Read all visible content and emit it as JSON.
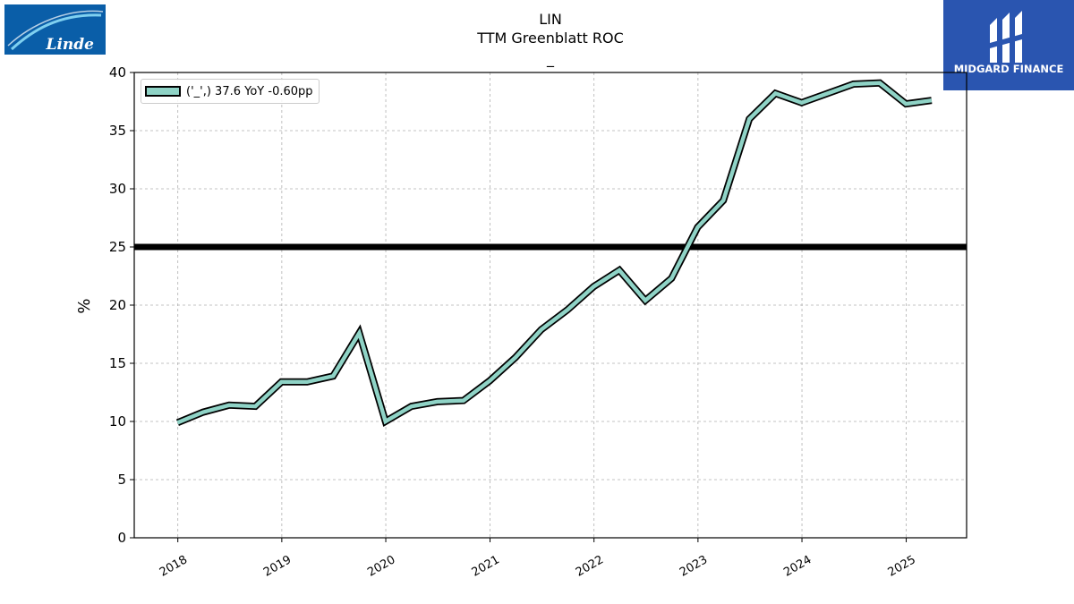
{
  "logos": {
    "left": {
      "text": "Linde",
      "bg_color": "#0a5ea8"
    },
    "right": {
      "text": "MIDGARD FINANCE",
      "bg_color": "#2a55b0"
    }
  },
  "chart_data": {
    "type": "line",
    "title": "LIN",
    "subtitle": "TTM Greenblatt ROC",
    "subtitle2": "_",
    "ylabel": "%",
    "xlabel": "",
    "ylim": [
      0,
      40
    ],
    "yticks": [
      0,
      5,
      10,
      15,
      20,
      25,
      30,
      35,
      40
    ],
    "xlim": [
      "2017-08-01",
      "2025-08-01"
    ],
    "xticks": [
      "2018",
      "2019",
      "2020",
      "2021",
      "2022",
      "2023",
      "2024",
      "2025"
    ],
    "grid": true,
    "legend_position": "top-left",
    "reference_line": {
      "y": 25,
      "color": "#000000"
    },
    "series": [
      {
        "name": "('_',) 37.6 YoY -0.60pp",
        "line_color": "#8fd3c6",
        "edge_color": "#000000",
        "x": [
          "2017-12-31",
          "2018-03-31",
          "2018-06-30",
          "2018-09-30",
          "2018-12-31",
          "2019-03-31",
          "2019-06-30",
          "2019-09-30",
          "2019-12-31",
          "2020-03-31",
          "2020-06-30",
          "2020-09-30",
          "2020-12-31",
          "2021-03-31",
          "2021-06-30",
          "2021-09-30",
          "2021-12-31",
          "2022-03-31",
          "2022-06-30",
          "2022-09-30",
          "2022-12-31",
          "2023-03-31",
          "2023-06-30",
          "2023-09-30",
          "2023-12-31",
          "2024-03-31",
          "2024-06-30",
          "2024-09-30",
          "2024-12-31",
          "2025-03-31"
        ],
        "values": [
          9.9,
          10.8,
          11.4,
          11.3,
          13.4,
          13.4,
          13.9,
          17.6,
          10.0,
          11.3,
          11.7,
          11.8,
          13.5,
          15.5,
          17.9,
          19.6,
          21.6,
          23.0,
          20.4,
          22.3,
          26.7,
          29.0,
          36.0,
          38.2,
          37.4,
          38.2,
          39.0,
          39.1,
          37.3,
          37.6
        ]
      }
    ]
  }
}
